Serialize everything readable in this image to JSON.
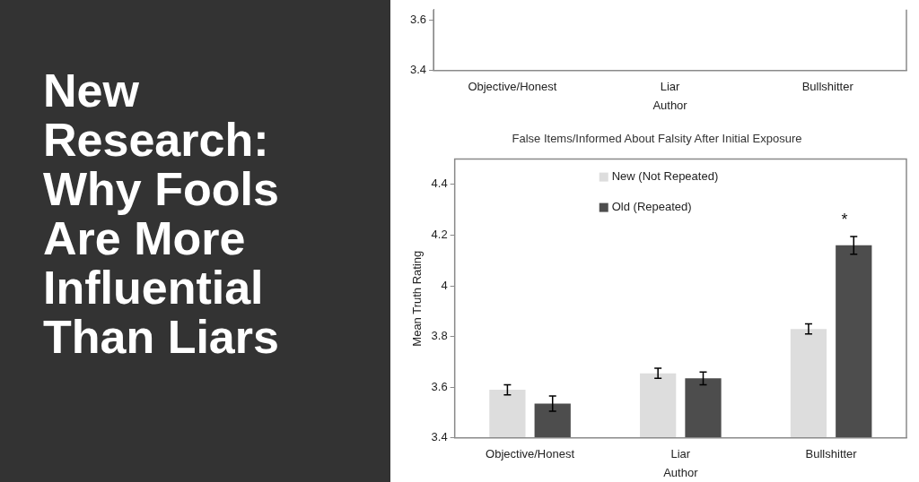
{
  "chart_data": [
    {
      "type": "other",
      "title": "New Research: Why Fools Are More Influential Than Liars"
    },
    {
      "type": "bar",
      "xlabel": "Author",
      "categories": [
        "Objective/Honest",
        "Liar",
        "Bullshitter"
      ],
      "ylim": [
        3.4,
        3.64
      ],
      "yticks": [
        3.4,
        3.6
      ],
      "grid": false,
      "series": [
        {
          "color": "#dddddd",
          "values": [
            null,
            null,
            null
          ]
        },
        {
          "color": "#4d4d4d",
          "values": [
            null,
            null,
            null
          ]
        }
      ]
    },
    {
      "type": "bar",
      "title": "False Items/Informed About Falsity After Initial Exposure",
      "xlabel": "Author",
      "ylabel": "Mean Truth Rating",
      "categories": [
        "Objective/Honest",
        "Liar",
        "Bullshitter"
      ],
      "ylim": [
        3.4,
        4.5
      ],
      "yticks": [
        3.4,
        3.6,
        3.8,
        4,
        4.2,
        4.4
      ],
      "grid": false,
      "legend": "top",
      "annotations": [
        "*"
      ],
      "series": [
        {
          "name": "New (Not Repeated)",
          "color": "#dddddd",
          "values": [
            3.59,
            3.655,
            3.83
          ],
          "errors": [
            0.02,
            0.02,
            0.02
          ]
        },
        {
          "name": "Old (Repeated)",
          "color": "#4d4d4d",
          "values": [
            3.535,
            3.635,
            4.16
          ],
          "errors": [
            0.03,
            0.025,
            0.035
          ]
        }
      ]
    }
  ]
}
